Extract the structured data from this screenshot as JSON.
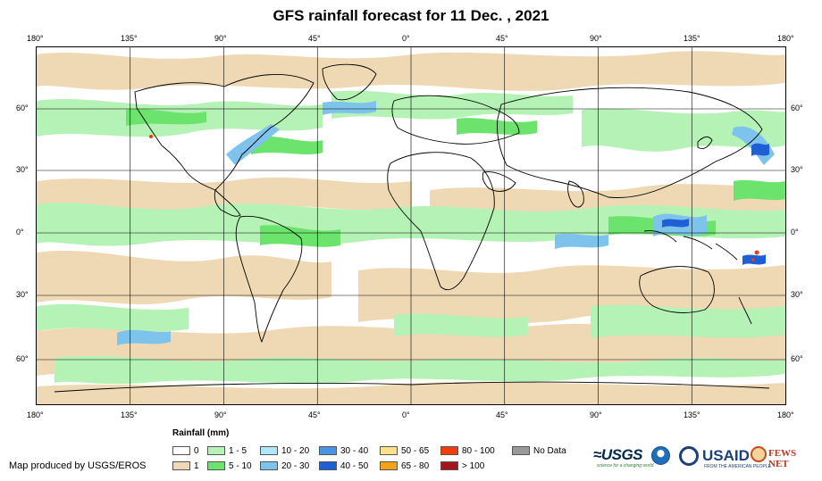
{
  "title": "GFS rainfall forecast for 11 Dec. , 2021",
  "axes": {
    "lon_ticks": [
      "180°",
      "135°",
      "90°",
      "45°",
      "0°",
      "45°",
      "90°",
      "135°",
      "180°"
    ],
    "lat_ticks": [
      "60°",
      "30°",
      "0°",
      "30°",
      "60°"
    ]
  },
  "legend": {
    "title": "Rainfall (mm)",
    "items": [
      {
        "label": "0",
        "color": "#ffffff"
      },
      {
        "label": "1",
        "color": "#efd9b4"
      },
      {
        "label": "1 - 5",
        "color": "#b5f2b5"
      },
      {
        "label": "5 - 10",
        "color": "#6ce36c"
      },
      {
        "label": "10 - 20",
        "color": "#b3e6f5"
      },
      {
        "label": "20 - 30",
        "color": "#7ec3ec"
      },
      {
        "label": "30 - 40",
        "color": "#4a95e3"
      },
      {
        "label": "40 - 50",
        "color": "#1f5fd6"
      },
      {
        "label": "50 - 65",
        "color": "#fce18a"
      },
      {
        "label": "65 - 80",
        "color": "#f3a317"
      },
      {
        "label": "80 - 100",
        "color": "#f13c0e"
      },
      {
        "label": "> 100",
        "color": "#a3171b"
      },
      {
        "label": "No Data",
        "color": "#999999"
      }
    ]
  },
  "credit": "Map produced by USGS/EROS",
  "logos": {
    "usgs": "≈USGS",
    "usgs_tagline": "science for a changing world",
    "usaid": "USAID",
    "usaid_tagline": "FROM THE AMERICAN PEOPLE",
    "fews": "FEWS NET"
  }
}
